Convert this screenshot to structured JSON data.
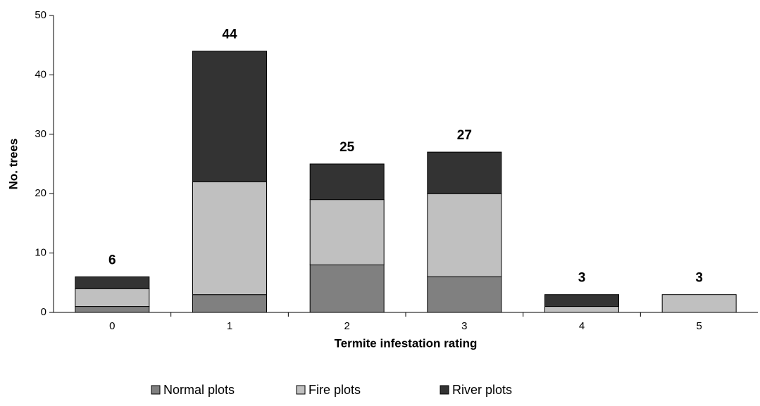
{
  "chart_data": {
    "type": "stacked_bar",
    "x_label": "Termite infestation rating",
    "y_label": "No. trees",
    "categories": [
      "0",
      "1",
      "2",
      "3",
      "4",
      "5"
    ],
    "series": [
      {
        "name": "Normal plots",
        "color": "#808080",
        "values": [
          1,
          3,
          8,
          6,
          0,
          0
        ]
      },
      {
        "name": "Fire plots",
        "color": "#c0c0c0",
        "values": [
          3,
          19,
          11,
          14,
          1,
          3
        ]
      },
      {
        "name": "River plots",
        "color": "#333333",
        "values": [
          2,
          22,
          6,
          7,
          2,
          0
        ]
      }
    ],
    "totals": [
      6,
      44,
      25,
      27,
      3,
      3
    ],
    "ylim": [
      0,
      50
    ],
    "yticks": [
      0,
      10,
      20,
      30,
      40,
      50
    ],
    "grid": false,
    "legend": "bottom"
  }
}
